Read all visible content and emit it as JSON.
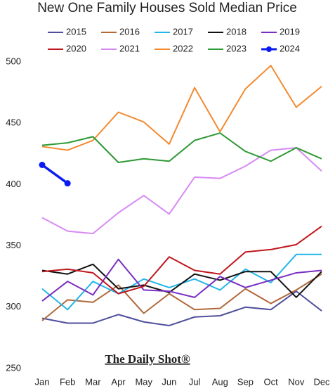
{
  "chart_data": {
    "type": "line",
    "title": "New One Family Houses Sold Median Price",
    "watermark": "The Daily Shot®",
    "categories": [
      "Jan",
      "Feb",
      "Mar",
      "Apr",
      "May",
      "Jun",
      "Jul",
      "Aug",
      "Sep",
      "Oct",
      "Nov",
      "Dec"
    ],
    "ylim": [
      250,
      500
    ],
    "yticks": [
      250,
      300,
      350,
      400,
      450,
      500
    ],
    "grid": false,
    "series": [
      {
        "name": "2015",
        "color": "#4f4f9e",
        "values": [
          291,
          287,
          287,
          294,
          288,
          285,
          292,
          293,
          300,
          298,
          313,
          297
        ]
      },
      {
        "name": "2016",
        "color": "#b0683a",
        "values": [
          289,
          306,
          304,
          318,
          295,
          311,
          298,
          299,
          315,
          303,
          314,
          327
        ]
      },
      {
        "name": "2017",
        "color": "#22b5ea",
        "values": [
          315,
          298,
          321,
          311,
          323,
          316,
          323,
          314,
          331,
          320,
          343,
          343
        ]
      },
      {
        "name": "2018",
        "color": "#111111",
        "values": [
          330,
          327,
          335,
          315,
          318,
          312,
          327,
          322,
          329,
          329,
          308,
          329
        ]
      },
      {
        "name": "2019",
        "color": "#7a2ec0",
        "values": [
          305,
          321,
          310,
          339,
          314,
          313,
          308,
          325,
          316,
          322,
          328,
          330
        ]
      },
      {
        "name": "2020",
        "color": "#c0161c",
        "values": [
          329,
          331,
          328,
          311,
          317,
          341,
          330,
          327,
          345,
          347,
          351,
          366
        ]
      },
      {
        "name": "2021",
        "color": "#d78af5",
        "values": [
          373,
          362,
          360,
          377,
          391,
          376,
          406,
          405,
          415,
          428,
          430,
          411
        ]
      },
      {
        "name": "2022",
        "color": "#f28a30",
        "values": [
          431,
          428,
          436,
          459,
          451,
          433,
          479,
          443,
          478,
          497,
          463,
          480
        ]
      },
      {
        "name": "2023",
        "color": "#2e9a35",
        "values": [
          432,
          434,
          439,
          418,
          421,
          419,
          436,
          442,
          427,
          419,
          430,
          421
        ]
      },
      {
        "name": "2024",
        "color": "#0a1cf0",
        "marker": true,
        "values": [
          416,
          401,
          null,
          null,
          null,
          null,
          null,
          null,
          null,
          null,
          null,
          null
        ]
      }
    ]
  }
}
